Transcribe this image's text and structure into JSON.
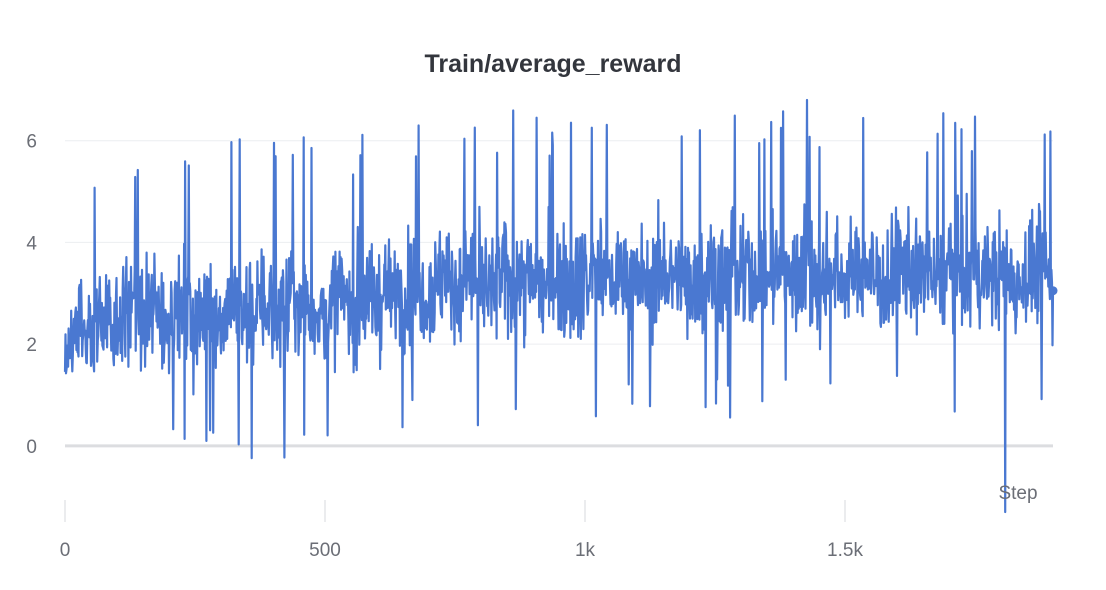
{
  "chart_data": {
    "type": "line",
    "title": "Train/average_reward",
    "xlabel": "Step",
    "ylabel": "",
    "xlim": [
      0,
      1900
    ],
    "ylim": [
      -1.3,
      6.8
    ],
    "x_ticks": [
      0,
      500,
      1000,
      1500
    ],
    "x_tick_labels": [
      "0",
      "500",
      "1k",
      "1.5k"
    ],
    "y_ticks": [
      0,
      2,
      4,
      6
    ],
    "y_tick_labels": [
      "0",
      "2",
      "4",
      "6"
    ],
    "grid": true,
    "legend": "none",
    "line_color": "#4a78d1",
    "series": [
      {
        "x_step": 25,
        "x": [
          0,
          25,
          50,
          75,
          100,
          125,
          150,
          175,
          200,
          225,
          250,
          275,
          300,
          325,
          350,
          375,
          400,
          425,
          450,
          475,
          500,
          525,
          550,
          575,
          600,
          625,
          650,
          675,
          700,
          725,
          750,
          775,
          800,
          825,
          850,
          875,
          900,
          925,
          950,
          975,
          1000,
          1025,
          1050,
          1075,
          1100,
          1125,
          1150,
          1175,
          1200,
          1225,
          1250,
          1275,
          1300,
          1325,
          1350,
          1375,
          1400,
          1425,
          1450,
          1475,
          1500,
          1525,
          1550,
          1575,
          1600,
          1625,
          1650,
          1675,
          1700,
          1725,
          1750,
          1775,
          1800,
          1825,
          1850,
          1875,
          1900
        ],
        "values": [
          2.0,
          2.3,
          2.1,
          2.6,
          2.5,
          2.8,
          2.4,
          2.6,
          2.5,
          2.7,
          2.3,
          2.8,
          2.5,
          2.9,
          2.6,
          2.7,
          2.8,
          2.6,
          2.9,
          2.7,
          2.5,
          3.0,
          2.7,
          2.9,
          2.8,
          3.1,
          2.9,
          3.2,
          3.0,
          3.3,
          3.1,
          3.4,
          3.2,
          3.0,
          3.4,
          3.2,
          3.3,
          3.1,
          3.4,
          3.2,
          3.3,
          3.5,
          3.2,
          3.4,
          3.3,
          3.1,
          3.5,
          3.3,
          3.2,
          3.4,
          3.3,
          3.5,
          3.2,
          3.4,
          3.3,
          3.5,
          3.3,
          3.6,
          3.2,
          3.4,
          3.3,
          3.5,
          3.4,
          3.2,
          3.5,
          3.3,
          3.4,
          3.2,
          3.5,
          3.3,
          3.4,
          3.3,
          3.5,
          3.2,
          3.4,
          3.6,
          3.05
        ]
      }
    ]
  }
}
